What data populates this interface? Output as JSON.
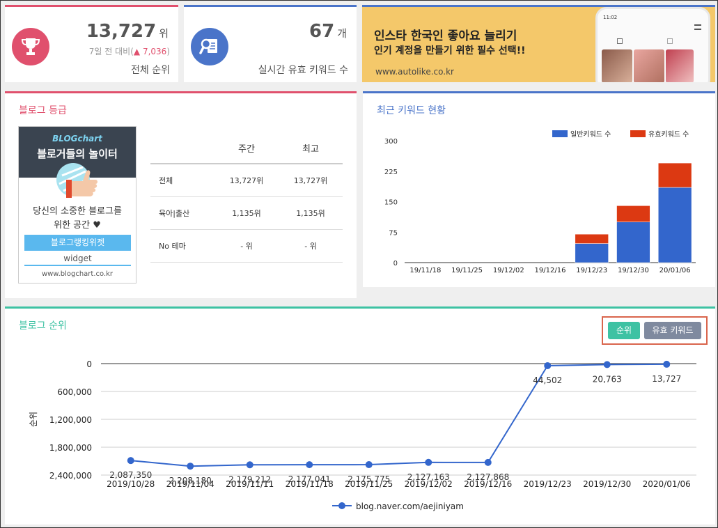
{
  "stats": [
    {
      "value": "13,727",
      "unit": "위",
      "compare_prefix": "7일 전 대비(",
      "compare_arrow": "▲",
      "compare_value": "7,036",
      "compare_suffix": ")",
      "label": "전체 순위",
      "icon": "trophy-icon",
      "color": "#e0506d"
    },
    {
      "value": "67",
      "unit": "개",
      "label": "실시간 유효 키워드 수",
      "icon": "search-document-icon",
      "color": "#4a74c9"
    }
  ],
  "ad": {
    "line1": "인스타 한국인 좋아요 늘리기",
    "line2": "인기 계정을 만들기 위한 필수 선택!!",
    "url": "www.autolike.co.kr",
    "phone_time": "11:02"
  },
  "grade": {
    "title": "블로그 등급",
    "widget": {
      "brand": "BLOGchart",
      "title": "블로거들의 놀이터",
      "text1": "당신의 소중한 블로그를",
      "text2": "위한 공간 ♥",
      "button": "블로그랭킹위젯",
      "sub": "widget",
      "url": "www.blogchart.co.kr"
    },
    "table": {
      "headers": [
        "",
        "주간",
        "최고"
      ],
      "rows": [
        [
          "전체",
          "13,727위",
          "13,727위"
        ],
        [
          "육아|출산",
          "1,135위",
          "1,135위"
        ],
        [
          "No 테마",
          "- 위",
          "- 위"
        ]
      ]
    }
  },
  "chart_data": [
    {
      "type": "bar",
      "title": "최근 키워드 현황",
      "categories": [
        "19/11/18",
        "19/11/25",
        "19/12/02",
        "19/12/16",
        "19/12/23",
        "19/12/30",
        "20/01/06"
      ],
      "series": [
        {
          "name": "일반키워드 수",
          "values": [
            0,
            0,
            0,
            0,
            47,
            100,
            185
          ],
          "color": "#3366cc"
        },
        {
          "name": "유효키워드 수",
          "values": [
            0,
            0,
            0,
            0,
            23,
            40,
            60
          ],
          "color": "#dc3912"
        }
      ],
      "stacked": true,
      "ylim": [
        0,
        300
      ],
      "yticks": [
        "0",
        "75",
        "150",
        "225",
        "300"
      ],
      "ytick_values": [
        0,
        75,
        150,
        225,
        300
      ],
      "legend": "top-right"
    },
    {
      "type": "line",
      "title": "블로그 순위",
      "x": [
        "2019/10/28",
        "2019/11/04",
        "2019/11/11",
        "2019/11/18",
        "2019/11/25",
        "2019/12/02",
        "2019/12/16",
        "2019/12/23",
        "2019/12/30",
        "2020/01/06"
      ],
      "series": [
        {
          "name": "blog.naver.com/aejiniyam",
          "values": [
            2087350,
            2208180,
            2179212,
            2177041,
            2175775,
            2127163,
            2127868,
            44502,
            20763,
            13727
          ],
          "labels": [
            "2,087,350",
            "2,208,180",
            "2,179,212",
            "2,177,041",
            "2,175,775",
            "2,127,163",
            "2,127,868",
            "44,502",
            "20,763",
            "13,727"
          ],
          "color": "#3366cc"
        }
      ],
      "ylabel": "순위",
      "yaxis_reversed": true,
      "ylim": [
        0,
        2400000
      ],
      "yticks": [
        "0",
        "600,000",
        "1,200,000",
        "1,800,000",
        "2,400,000"
      ],
      "ytick_values": [
        0,
        600000,
        1200000,
        1800000,
        2400000
      ],
      "legend": "bottom"
    }
  ],
  "rank": {
    "title": "블로그 순위",
    "buttons": {
      "rank": "순위",
      "keyword": "유효 키워드"
    }
  }
}
